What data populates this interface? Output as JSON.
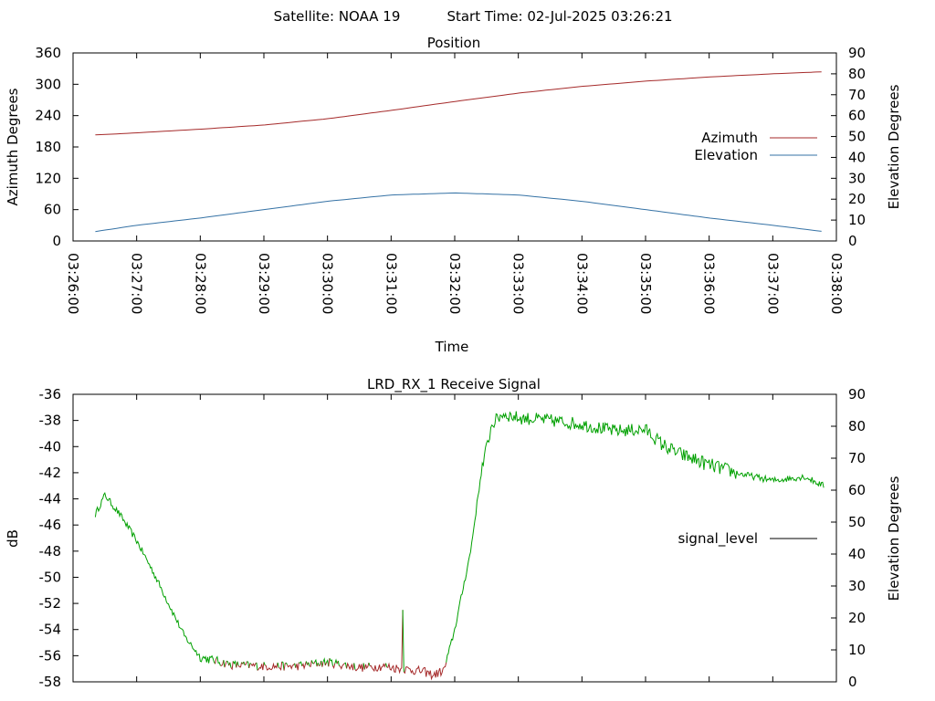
{
  "header": {
    "satellite_text": "Satellite: NOAA 19",
    "start_time_text": "Start Time: 02-Jul-2025 03:26:21"
  },
  "colors": {
    "azimuth": "#a52a2a",
    "elevation": "#3572a5",
    "signal_high": "#00a000",
    "signal_low": "#a52a2a",
    "legend_signal_level": "#000000"
  },
  "chart_data": [
    {
      "type": "line",
      "title": "Position",
      "xlabel": "Time",
      "ylabel": "Azimuth Degrees",
      "y2label": "Elevation Degrees",
      "xlim": [
        "03:26:00",
        "03:38:00"
      ],
      "ylim": [
        0,
        360
      ],
      "y2lim": [
        0,
        90
      ],
      "x_ticks": [
        "03:26:00",
        "03:27:00",
        "03:28:00",
        "03:29:00",
        "03:30:00",
        "03:31:00",
        "03:32:00",
        "03:33:00",
        "03:34:00",
        "03:35:00",
        "03:36:00",
        "03:37:00",
        "03:38:00"
      ],
      "y_ticks": [
        "0",
        "60",
        "120",
        "180",
        "240",
        "300",
        "360"
      ],
      "y2_ticks": [
        "0",
        "10",
        "20",
        "30",
        "40",
        "50",
        "60",
        "70",
        "80",
        "90"
      ],
      "legend_position": "right",
      "grid": false,
      "series": [
        {
          "name": "Azimuth",
          "axis": "left",
          "x": [
            "03:26:21",
            "03:27:00",
            "03:28:00",
            "03:29:00",
            "03:30:00",
            "03:31:00",
            "03:32:00",
            "03:33:00",
            "03:34:00",
            "03:35:00",
            "03:36:00",
            "03:37:00",
            "03:37:48"
          ],
          "y": [
            203,
            207,
            214,
            222,
            234,
            250,
            267,
            283,
            296,
            306,
            314,
            320,
            324
          ]
        },
        {
          "name": "Elevation",
          "axis": "right",
          "x": [
            "03:26:21",
            "03:27:00",
            "03:28:00",
            "03:29:00",
            "03:30:00",
            "03:31:00",
            "03:32:00",
            "03:33:00",
            "03:34:00",
            "03:35:00",
            "03:36:00",
            "03:37:00",
            "03:37:48"
          ],
          "y": [
            4.5,
            7.5,
            11,
            15,
            19,
            22,
            23,
            22,
            19,
            15,
            11,
            7.5,
            4.5
          ]
        }
      ]
    },
    {
      "type": "line",
      "title": "LRD_RX_1 Receive Signal",
      "xlabel": "",
      "ylabel": "dB",
      "y2label": "Elevation Degrees",
      "xlim": [
        "03:26:00",
        "03:38:00"
      ],
      "ylim": [
        -58,
        -36
      ],
      "y2lim": [
        0,
        90
      ],
      "y_ticks": [
        "-58",
        "-56",
        "-54",
        "-52",
        "-50",
        "-48",
        "-46",
        "-44",
        "-42",
        "-40",
        "-38",
        "-36"
      ],
      "y2_ticks": [
        "0",
        "10",
        "20",
        "30",
        "40",
        "50",
        "60",
        "70",
        "80",
        "90"
      ],
      "legend_position": "right",
      "grid": false,
      "low_signal_threshold_db": -56.6,
      "series": [
        {
          "name": "signal_level",
          "axis": "left",
          "x": [
            "03:26:21",
            "03:26:30",
            "03:26:45",
            "03:27:00",
            "03:27:15",
            "03:27:30",
            "03:27:45",
            "03:28:00",
            "03:28:30",
            "03:29:00",
            "03:29:30",
            "03:30:00",
            "03:30:30",
            "03:30:55",
            "03:31:00",
            "03:31:30",
            "03:31:40",
            "03:31:50",
            "03:32:00",
            "03:32:15",
            "03:32:25",
            "03:32:35",
            "03:32:45",
            "03:33:00",
            "03:33:30",
            "03:34:00",
            "03:34:30",
            "03:35:00",
            "03:35:15",
            "03:35:30",
            "03:36:00",
            "03:36:30",
            "03:37:00",
            "03:37:30",
            "03:37:48"
          ],
          "y": [
            -45.2,
            -43.7,
            -45.3,
            -47.2,
            -49.5,
            -52.0,
            -54.5,
            -56.1,
            -56.7,
            -56.8,
            -56.8,
            -56.5,
            -56.9,
            -56.8,
            -56.9,
            -57.2,
            -57.5,
            -57.1,
            -54.0,
            -48.0,
            -42.0,
            -38.3,
            -37.5,
            -37.8,
            -38.0,
            -38.3,
            -38.8,
            -38.7,
            -39.8,
            -40.5,
            -41.4,
            -42.1,
            -42.6,
            -42.3,
            -43.0
          ]
        }
      ],
      "spike": {
        "x": "03:31:11",
        "y": -52.5
      }
    }
  ]
}
